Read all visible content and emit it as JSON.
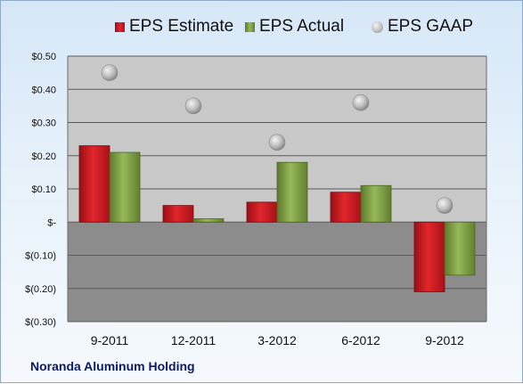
{
  "chart_data": {
    "type": "bar",
    "categories": [
      "9-2011",
      "12-2011",
      "3-2012",
      "6-2012",
      "9-2012"
    ],
    "series": [
      {
        "name": "EPS Estimate",
        "type": "bar",
        "values": [
          0.23,
          0.05,
          0.06,
          0.09,
          -0.21
        ],
        "color": "#d81f26"
      },
      {
        "name": "EPS Actual",
        "type": "bar",
        "values": [
          0.21,
          0.01,
          0.18,
          0.11,
          -0.16
        ],
        "color": "#86a84b"
      },
      {
        "name": "EPS GAAP",
        "type": "scatter",
        "values": [
          0.45,
          0.35,
          0.24,
          0.36,
          0.05
        ],
        "color": "#bdbdbd"
      }
    ],
    "ylim": [
      -0.3,
      0.5
    ],
    "ytick_values": [
      0.5,
      0.4,
      0.3,
      0.2,
      0.1,
      0,
      -0.1,
      -0.2,
      -0.3
    ],
    "ytick_labels": [
      "$0.50",
      "$0.40",
      "$0.30",
      "$0.20",
      "$0.10",
      "$-",
      "$(0.10)",
      "$(0.20)",
      "$(0.30)"
    ],
    "legend_position": "top",
    "grid": true,
    "colors": {
      "plot_positive": "#c8c8c8",
      "plot_negative": "#8c8c8c",
      "grid": "#5a5a5a"
    }
  },
  "footer": {
    "company": "Noranda Aluminum Holding"
  }
}
